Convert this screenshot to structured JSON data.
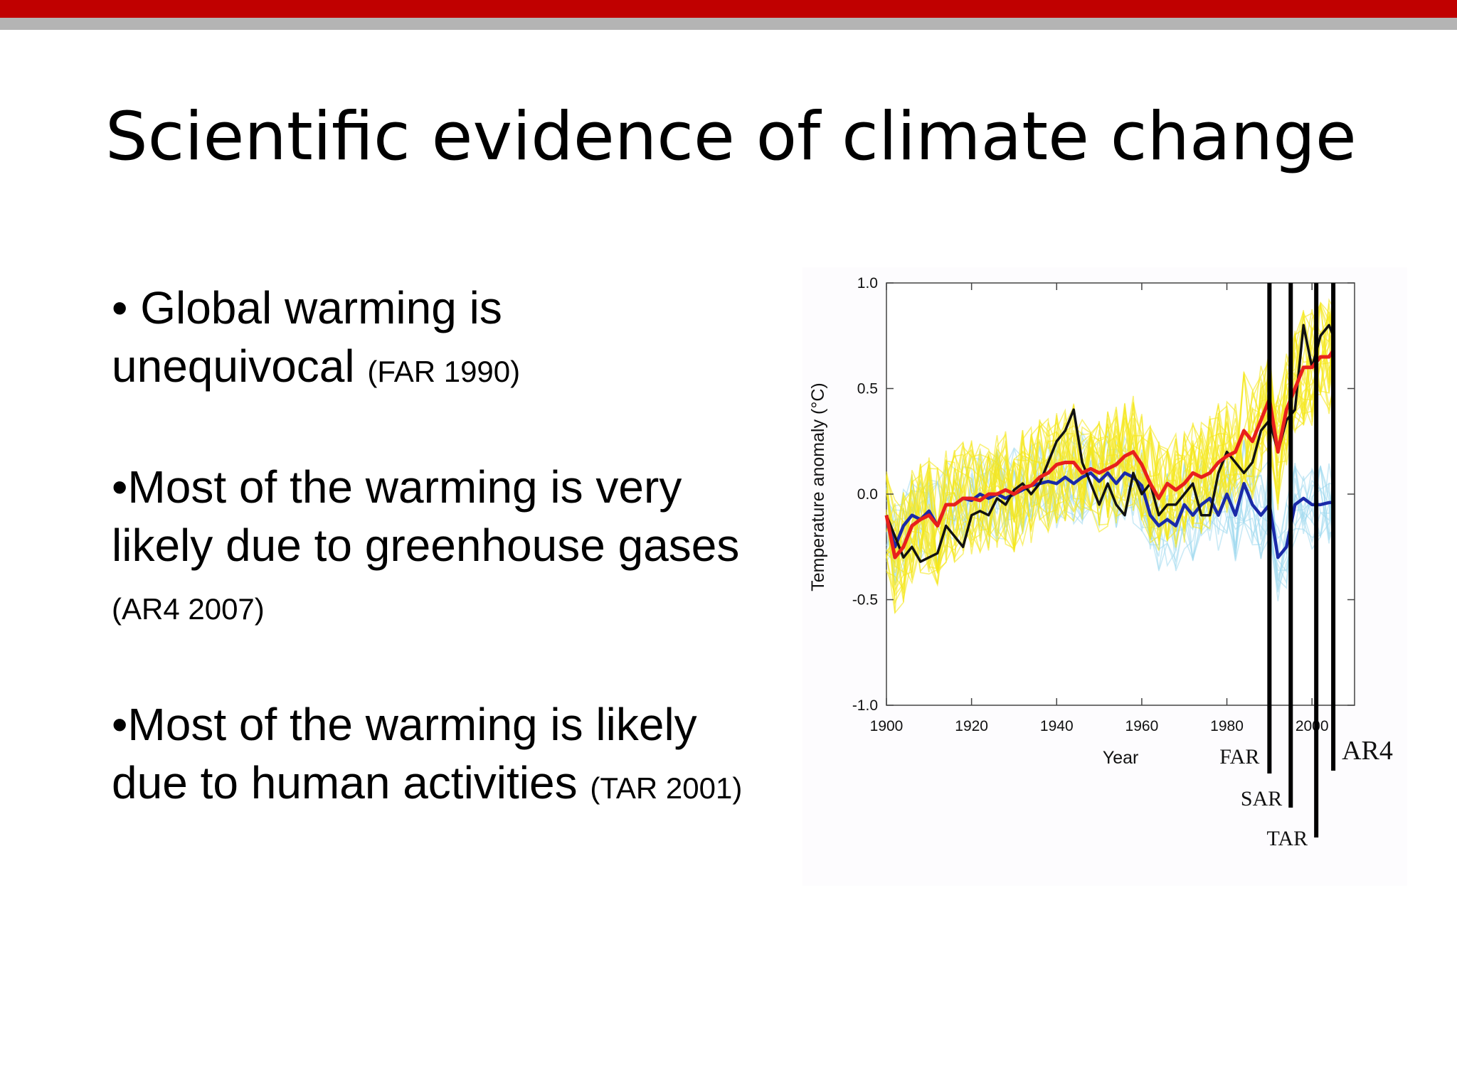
{
  "slide": {
    "title": "Scientific evidence of climate change",
    "bullets": [
      {
        "marker": "• ",
        "text": "Global warming is unequivocal",
        "source": "(FAR 1990)"
      },
      {
        "marker": "•",
        "text": "Most of the warming is very likely due to greenhouse gases",
        "source": "(AR4 2007)"
      },
      {
        "marker": "•",
        "text": "Most of the warming is likely due to human activities",
        "source": "(TAR 2001)"
      }
    ]
  },
  "chart_data": {
    "type": "line",
    "title": "",
    "xlabel": "Year",
    "ylabel": "Temperature anomaly (°C)",
    "xlim": [
      1900,
      2010
    ],
    "ylim": [
      -1.0,
      1.0
    ],
    "xticks": [
      "1900",
      "1920",
      "1940",
      "1960",
      "1980",
      "2000"
    ],
    "yticks": [
      "1.0",
      "0.5",
      "0.0",
      "-0.5",
      "-1.0"
    ],
    "grid": false,
    "colors": {
      "observed": "#111111",
      "all_forcing": "#e8201c",
      "natural_only": "#1a2aa8",
      "all_forcing_runs": "#f5e81a",
      "natural_runs": "#9fd8ef"
    },
    "series": [
      {
        "id": "observed",
        "color": "#111111",
        "x": [
          1900,
          1902,
          1904,
          1906,
          1908,
          1910,
          1912,
          1914,
          1916,
          1918,
          1920,
          1922,
          1924,
          1926,
          1928,
          1930,
          1932,
          1934,
          1936,
          1938,
          1940,
          1942,
          1944,
          1946,
          1948,
          1950,
          1952,
          1954,
          1956,
          1958,
          1960,
          1962,
          1964,
          1966,
          1968,
          1970,
          1972,
          1974,
          1976,
          1978,
          1980,
          1982,
          1984,
          1986,
          1988,
          1990,
          1992,
          1994,
          1996,
          1998,
          2000,
          2002,
          2004,
          2005
        ],
        "y": [
          -0.1,
          -0.2,
          -0.3,
          -0.25,
          -0.32,
          -0.3,
          -0.28,
          -0.15,
          -0.2,
          -0.25,
          -0.1,
          -0.08,
          -0.1,
          -0.02,
          -0.05,
          0.02,
          0.05,
          0.0,
          0.05,
          0.15,
          0.25,
          0.3,
          0.4,
          0.15,
          0.05,
          -0.05,
          0.05,
          -0.05,
          -0.1,
          0.1,
          0.0,
          0.05,
          -0.1,
          -0.05,
          -0.05,
          0.0,
          0.05,
          -0.1,
          -0.1,
          0.1,
          0.2,
          0.15,
          0.1,
          0.15,
          0.3,
          0.35,
          0.2,
          0.35,
          0.4,
          0.8,
          0.6,
          0.75,
          0.8,
          0.75
        ]
      },
      {
        "id": "all_forcing",
        "color": "#e8201c",
        "x": [
          1900,
          1902,
          1904,
          1906,
          1908,
          1910,
          1912,
          1914,
          1916,
          1918,
          1920,
          1922,
          1924,
          1926,
          1928,
          1930,
          1932,
          1934,
          1936,
          1938,
          1940,
          1942,
          1944,
          1946,
          1948,
          1950,
          1952,
          1954,
          1956,
          1958,
          1960,
          1962,
          1964,
          1966,
          1968,
          1970,
          1972,
          1974,
          1976,
          1978,
          1980,
          1982,
          1984,
          1986,
          1988,
          1990,
          1992,
          1994,
          1996,
          1998,
          2000,
          2002,
          2004,
          2005
        ],
        "y": [
          -0.1,
          -0.3,
          -0.25,
          -0.15,
          -0.12,
          -0.1,
          -0.15,
          -0.05,
          -0.05,
          -0.02,
          -0.02,
          -0.03,
          0.0,
          0.0,
          0.02,
          0.0,
          0.03,
          0.04,
          0.08,
          0.1,
          0.14,
          0.15,
          0.15,
          0.1,
          0.12,
          0.1,
          0.12,
          0.14,
          0.18,
          0.2,
          0.14,
          0.05,
          -0.02,
          0.05,
          0.02,
          0.05,
          0.1,
          0.08,
          0.1,
          0.15,
          0.18,
          0.2,
          0.3,
          0.25,
          0.35,
          0.45,
          0.2,
          0.4,
          0.5,
          0.6,
          0.6,
          0.65,
          0.65,
          0.68
        ]
      },
      {
        "id": "natural_only",
        "color": "#1a2aa8",
        "x": [
          1900,
          1902,
          1904,
          1906,
          1908,
          1910,
          1912,
          1914,
          1916,
          1918,
          1920,
          1922,
          1924,
          1926,
          1928,
          1930,
          1932,
          1934,
          1936,
          1938,
          1940,
          1942,
          1944,
          1946,
          1948,
          1950,
          1952,
          1954,
          1956,
          1958,
          1960,
          1962,
          1964,
          1966,
          1968,
          1970,
          1972,
          1974,
          1976,
          1978,
          1980,
          1982,
          1984,
          1986,
          1988,
          1990,
          1992,
          1994,
          1996,
          1998,
          2000,
          2002,
          2004,
          2005
        ],
        "y": [
          -0.1,
          -0.25,
          -0.15,
          -0.1,
          -0.12,
          -0.08,
          -0.15,
          -0.05,
          -0.05,
          -0.02,
          -0.03,
          0.0,
          -0.02,
          0.0,
          -0.02,
          0.0,
          0.02,
          0.04,
          0.05,
          0.06,
          0.05,
          0.08,
          0.05,
          0.08,
          0.1,
          0.06,
          0.1,
          0.05,
          0.1,
          0.08,
          0.04,
          -0.1,
          -0.15,
          -0.12,
          -0.15,
          -0.05,
          -0.1,
          -0.05,
          -0.02,
          -0.1,
          0.0,
          -0.1,
          0.05,
          -0.05,
          -0.1,
          -0.05,
          -0.3,
          -0.25,
          -0.05,
          -0.02,
          -0.05,
          -0.05,
          -0.04,
          -0.04
        ]
      }
    ],
    "annotations": [
      {
        "label": "FAR",
        "x": 1990
      },
      {
        "label": "SAR",
        "x": 1995
      },
      {
        "label": "TAR",
        "x": 2001
      },
      {
        "label": "AR4",
        "x": 2005
      }
    ]
  }
}
